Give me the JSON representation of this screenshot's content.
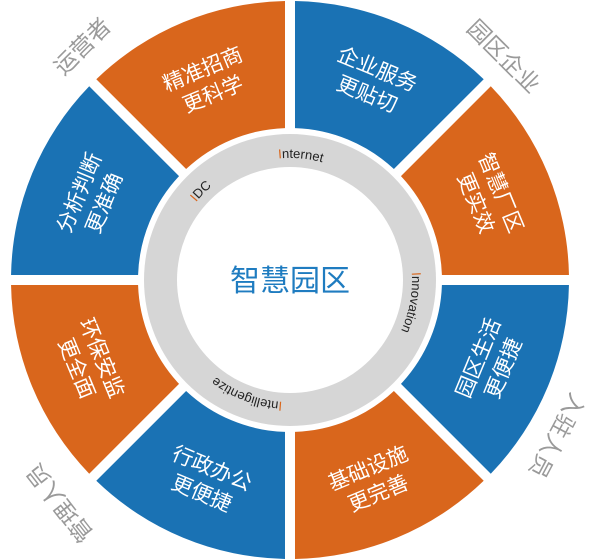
{
  "colors": {
    "blue": "#1a72b4",
    "orange": "#d9661c",
    "ring": "#d6d6d6",
    "title": "#1f7cc0",
    "outer_label": "#9a9a9a"
  },
  "center": {
    "title": "智慧园区"
  },
  "ring_labels": [
    {
      "initial": "I",
      "rest": "DC"
    },
    {
      "initial": "I",
      "rest": "nternet"
    },
    {
      "initial": "I",
      "rest": "nnovation"
    },
    {
      "initial": "I",
      "rest": "ntelligentize"
    }
  ],
  "segments": [
    {
      "line1": "企业服务",
      "line2": "更贴切",
      "color": "blue"
    },
    {
      "line1": "智慧厂区",
      "line2": "更实效",
      "color": "orange"
    },
    {
      "line1": "园区生活",
      "line2": "更便捷",
      "color": "blue"
    },
    {
      "line1": "基础设施",
      "line2": "更完善",
      "color": "orange"
    },
    {
      "line1": "行政办公",
      "line2": "更便捷",
      "color": "blue"
    },
    {
      "line1": "环保安监",
      "line2": "更全面",
      "color": "orange"
    },
    {
      "line1": "分析判断",
      "line2": "更准确",
      "color": "blue"
    },
    {
      "line1": "精准招商",
      "line2": "更科学",
      "color": "orange"
    }
  ],
  "outer_labels": [
    "运营者",
    "园区企业",
    "入驻人员",
    "管理人员"
  ]
}
